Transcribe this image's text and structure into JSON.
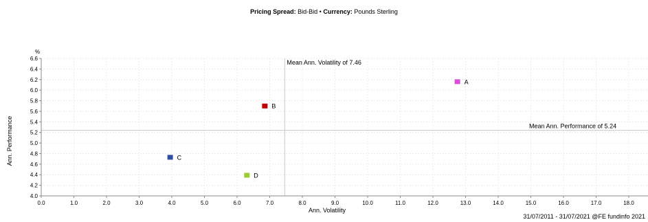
{
  "header": {
    "spread_label": "Pricing Spread:",
    "spread_value": "Bid-Bid",
    "separator": "•",
    "currency_label": "Currency:",
    "currency_value": "Pounds Sterling"
  },
  "footer": {
    "text": "31/07/2011 - 31/07/2021 @FE fundinfo 2021"
  },
  "chart_data": {
    "type": "scatter",
    "title": "",
    "xlabel": "Ann. Volatility",
    "ylabel": "Ann. Performance",
    "y_unit": "%",
    "xlim": [
      0,
      18.5
    ],
    "ylim": [
      4.0,
      6.6
    ],
    "x_ticks": [
      "0.0",
      "1.0",
      "2.0",
      "3.0",
      "4.0",
      "5.0",
      "6.0",
      "7.0",
      "8.0",
      "9.0",
      "10.0",
      "11.0",
      "12.0",
      "13.0",
      "14.0",
      "15.0",
      "16.0",
      "17.0",
      "18.0"
    ],
    "y_ticks": [
      "4.0",
      "4.2",
      "4.4",
      "4.6",
      "4.8",
      "5.0",
      "5.2",
      "5.4",
      "5.6",
      "5.8",
      "6.0",
      "6.2",
      "6.4",
      "6.6"
    ],
    "grid": true,
    "points": [
      {
        "label": "A",
        "x": 12.75,
        "y": 6.16,
        "color": "#d94fd6"
      },
      {
        "label": "B",
        "x": 6.85,
        "y": 5.7,
        "color": "#c00000"
      },
      {
        "label": "C",
        "x": 3.95,
        "y": 4.73,
        "color": "#2e4ea0"
      },
      {
        "label": "D",
        "x": 6.3,
        "y": 4.39,
        "color": "#9acd32"
      }
    ],
    "mean_volatility": {
      "value": 7.46,
      "label": "Mean Ann. Volatility of 7.46"
    },
    "mean_performance": {
      "value": 5.24,
      "label": "Mean Ann. Performance of 5.24"
    }
  }
}
